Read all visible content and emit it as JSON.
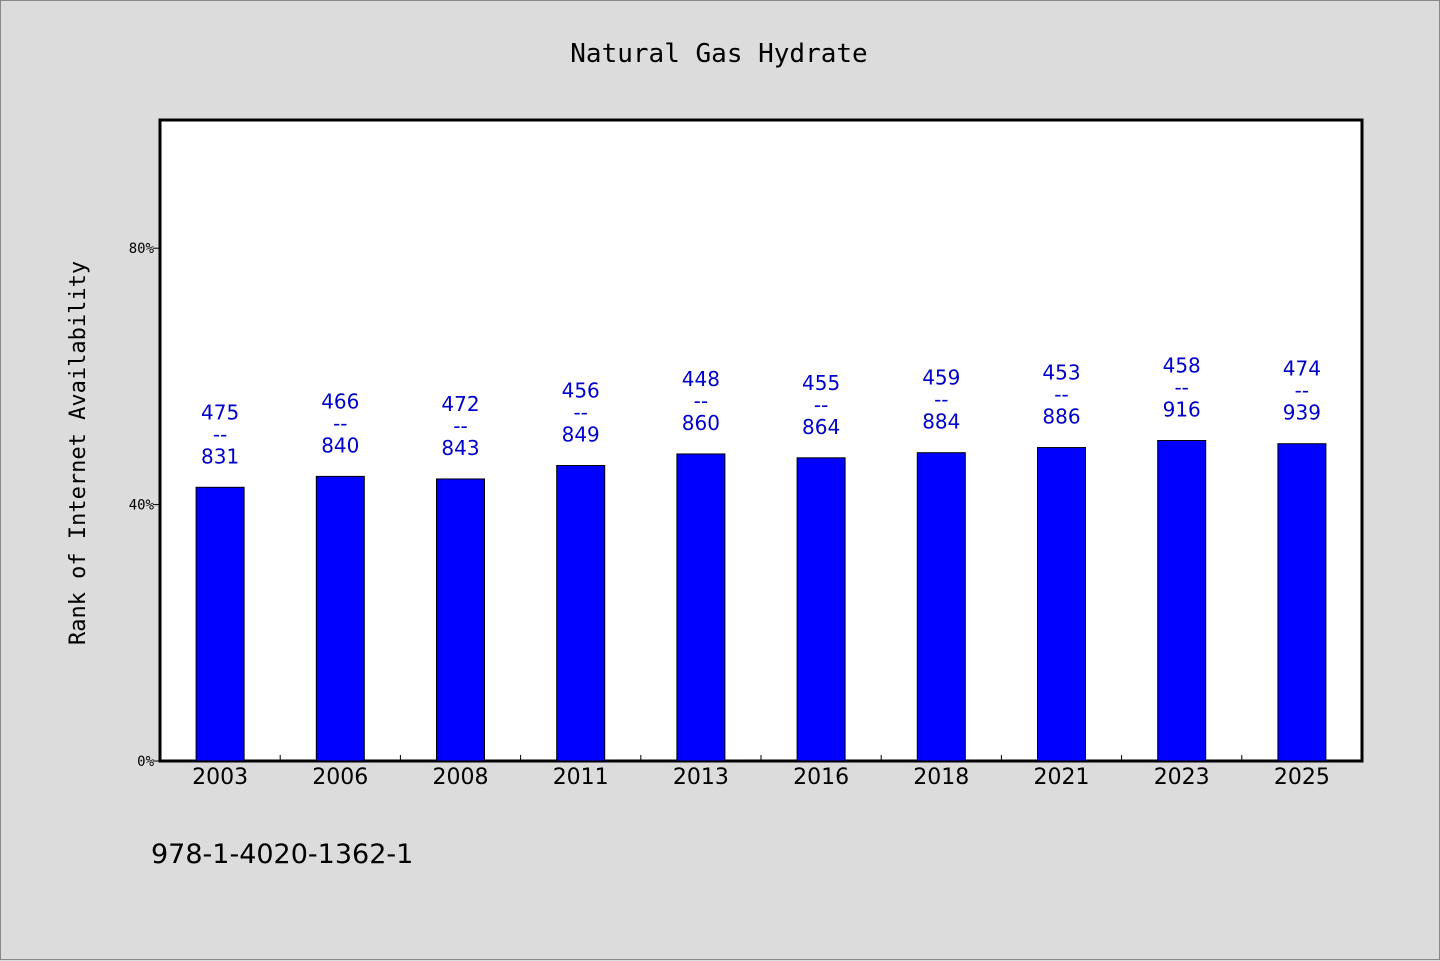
{
  "chart_data": {
    "type": "bar",
    "title": "Natural Gas Hydrate",
    "ylabel": "Rank of Internet Availability",
    "xlabel": "",
    "ylim": [
      0,
      100
    ],
    "yticks": [
      {
        "value": 0,
        "label": "0%"
      },
      {
        "value": 40,
        "label": "40%"
      },
      {
        "value": 80,
        "label": "80%"
      }
    ],
    "categories": [
      "2003",
      "2006",
      "2008",
      "2011",
      "2013",
      "2016",
      "2018",
      "2021",
      "2023",
      "2025"
    ],
    "values": [
      42.7,
      44.4,
      44.0,
      46.1,
      47.9,
      47.3,
      48.1,
      48.9,
      50.0,
      49.5
    ],
    "labels": [
      [
        "475",
        "--",
        "831"
      ],
      [
        "466",
        "--",
        "840"
      ],
      [
        "472",
        "--",
        "843"
      ],
      [
        "456",
        "--",
        "849"
      ],
      [
        "448",
        "--",
        "860"
      ],
      [
        "455",
        "--",
        "864"
      ],
      [
        "459",
        "--",
        "884"
      ],
      [
        "453",
        "--",
        "886"
      ],
      [
        "458",
        "--",
        "916"
      ],
      [
        "474",
        "--",
        "939"
      ]
    ],
    "bar_color": "#0000ff",
    "label_color": "#0000cc",
    "grid": false,
    "legend": "none"
  },
  "footer": {
    "code": "978-1-4020-1362-1"
  }
}
